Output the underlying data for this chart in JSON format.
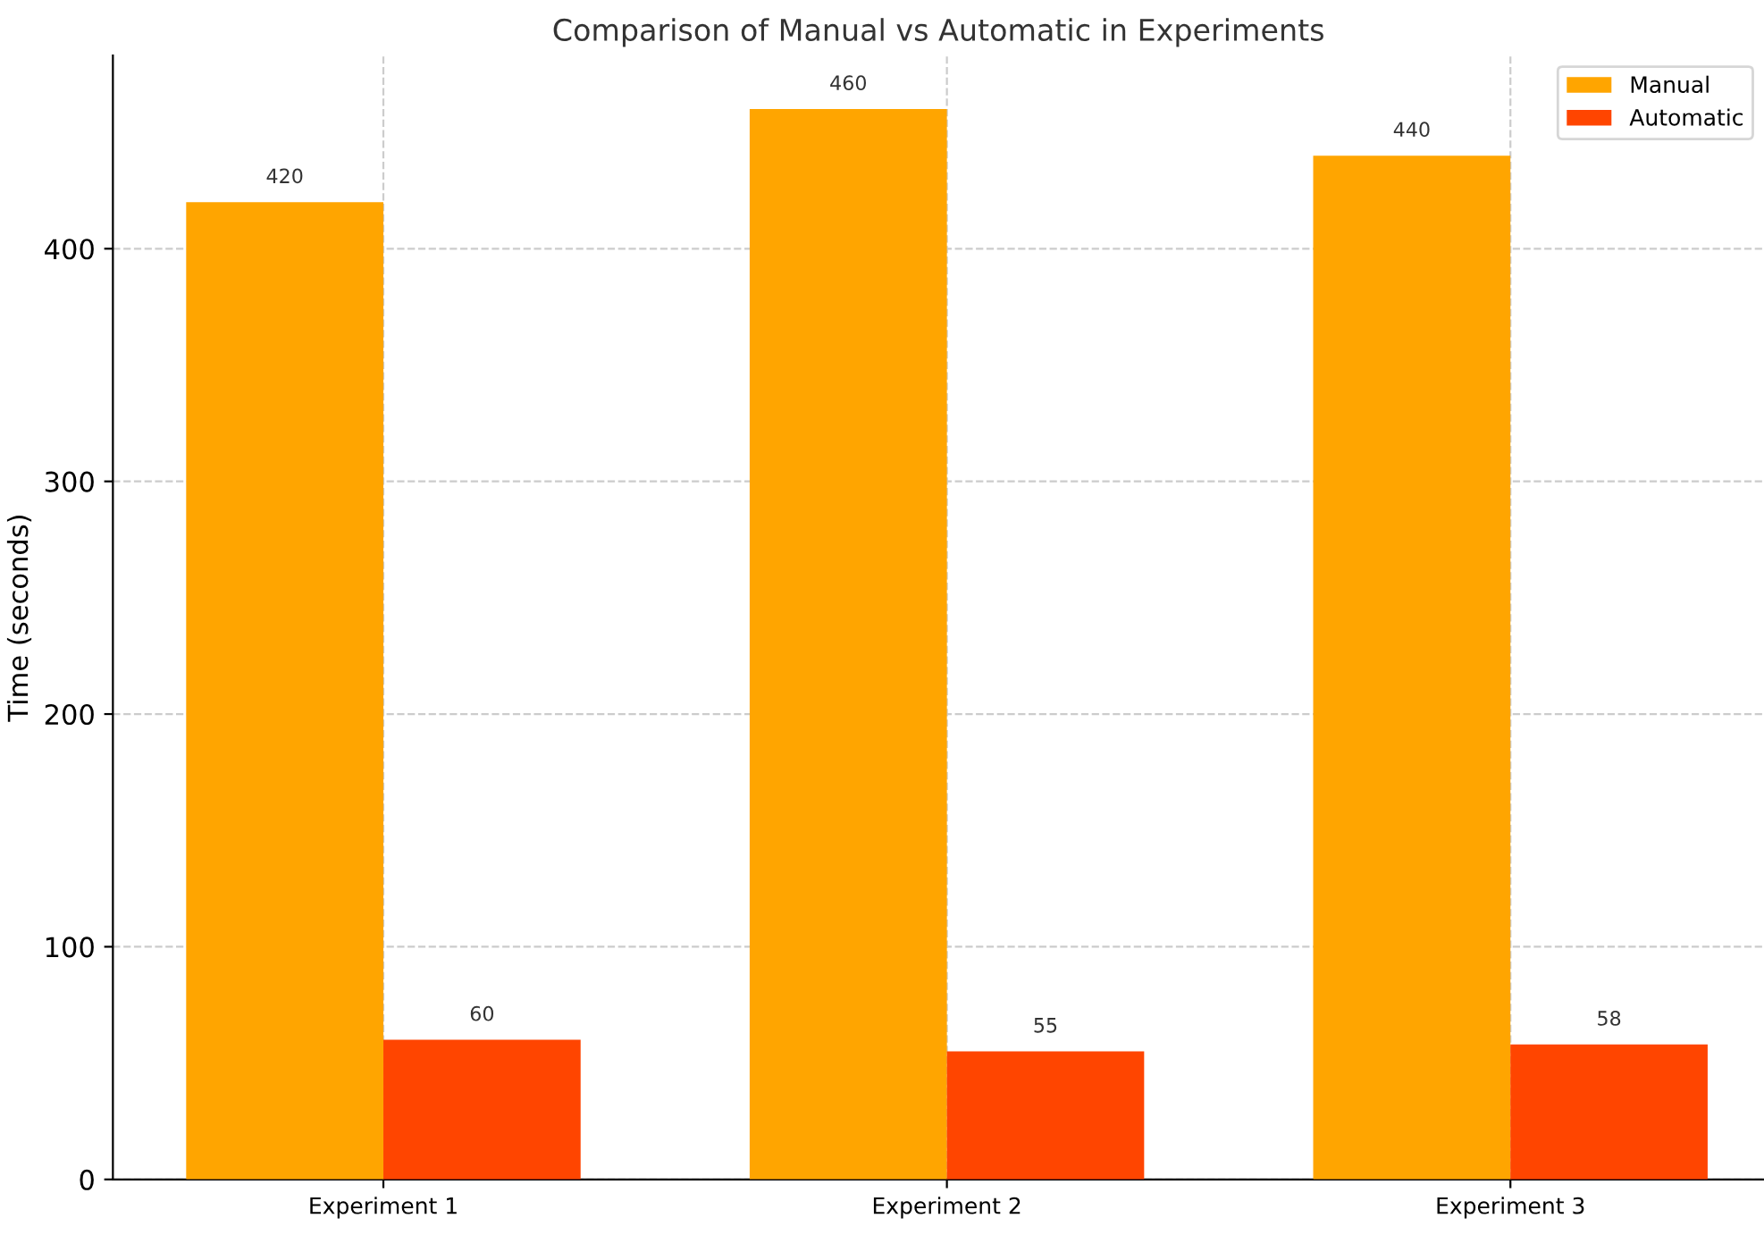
{
  "chart_data": {
    "type": "bar",
    "title": "Comparison of Manual vs Automatic in Experiments",
    "ylabel": "Time (seconds)",
    "categories": [
      "Experiment 1",
      "Experiment 2",
      "Experiment 3"
    ],
    "series": [
      {
        "name": "Manual",
        "color": "#ffa500",
        "values": [
          420,
          460,
          440
        ]
      },
      {
        "name": "Automatic",
        "color": "#ff4500",
        "values": [
          60,
          55,
          58
        ]
      }
    ],
    "ylim": [
      0,
      483
    ],
    "yticks": [
      0,
      100,
      200,
      300,
      400
    ],
    "grid": true,
    "legend": "top right",
    "data_labels": true
  }
}
